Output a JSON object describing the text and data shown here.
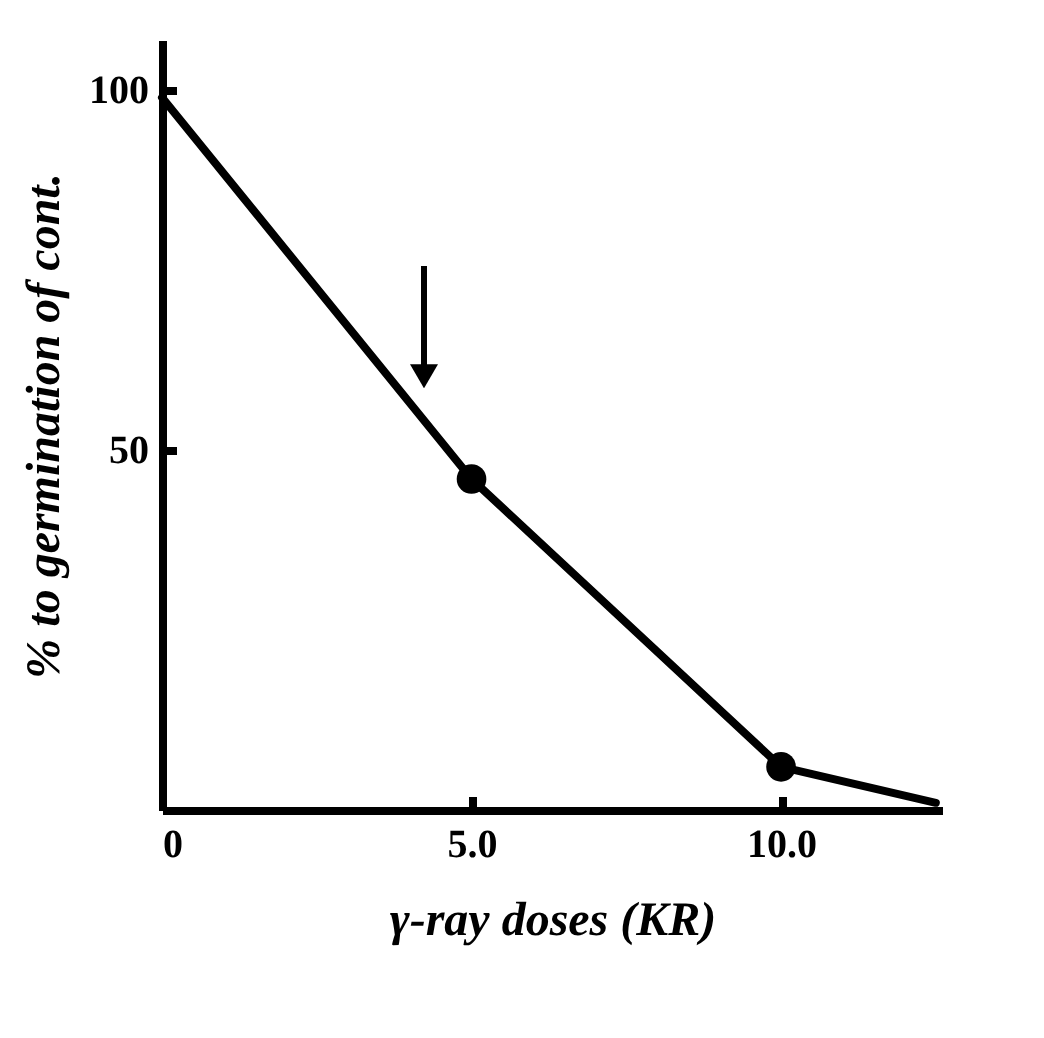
{
  "chart_data": {
    "type": "line",
    "xlabel": "γ-ray doses (KR)",
    "ylabel": "% to germination of cont.",
    "xlim": [
      0,
      12.6
    ],
    "xticks": [
      0,
      {
        "value": 5,
        "label": "5.0"
      },
      {
        "value": 10,
        "label": "10.0"
      }
    ],
    "ylim": [
      0,
      107
    ],
    "yticks": [
      50,
      100
    ],
    "grid": false,
    "series": [
      {
        "color": "#000000",
        "marker": "none",
        "x": [
          0,
          5,
          10,
          12.5
        ],
        "values": [
          99,
          46,
          6,
          1
        ]
      },
      {
        "type": "scatter",
        "color": "#000000",
        "marker": "circle",
        "x": [
          5,
          10
        ],
        "values": [
          46,
          6
        ]
      }
    ]
  }
}
